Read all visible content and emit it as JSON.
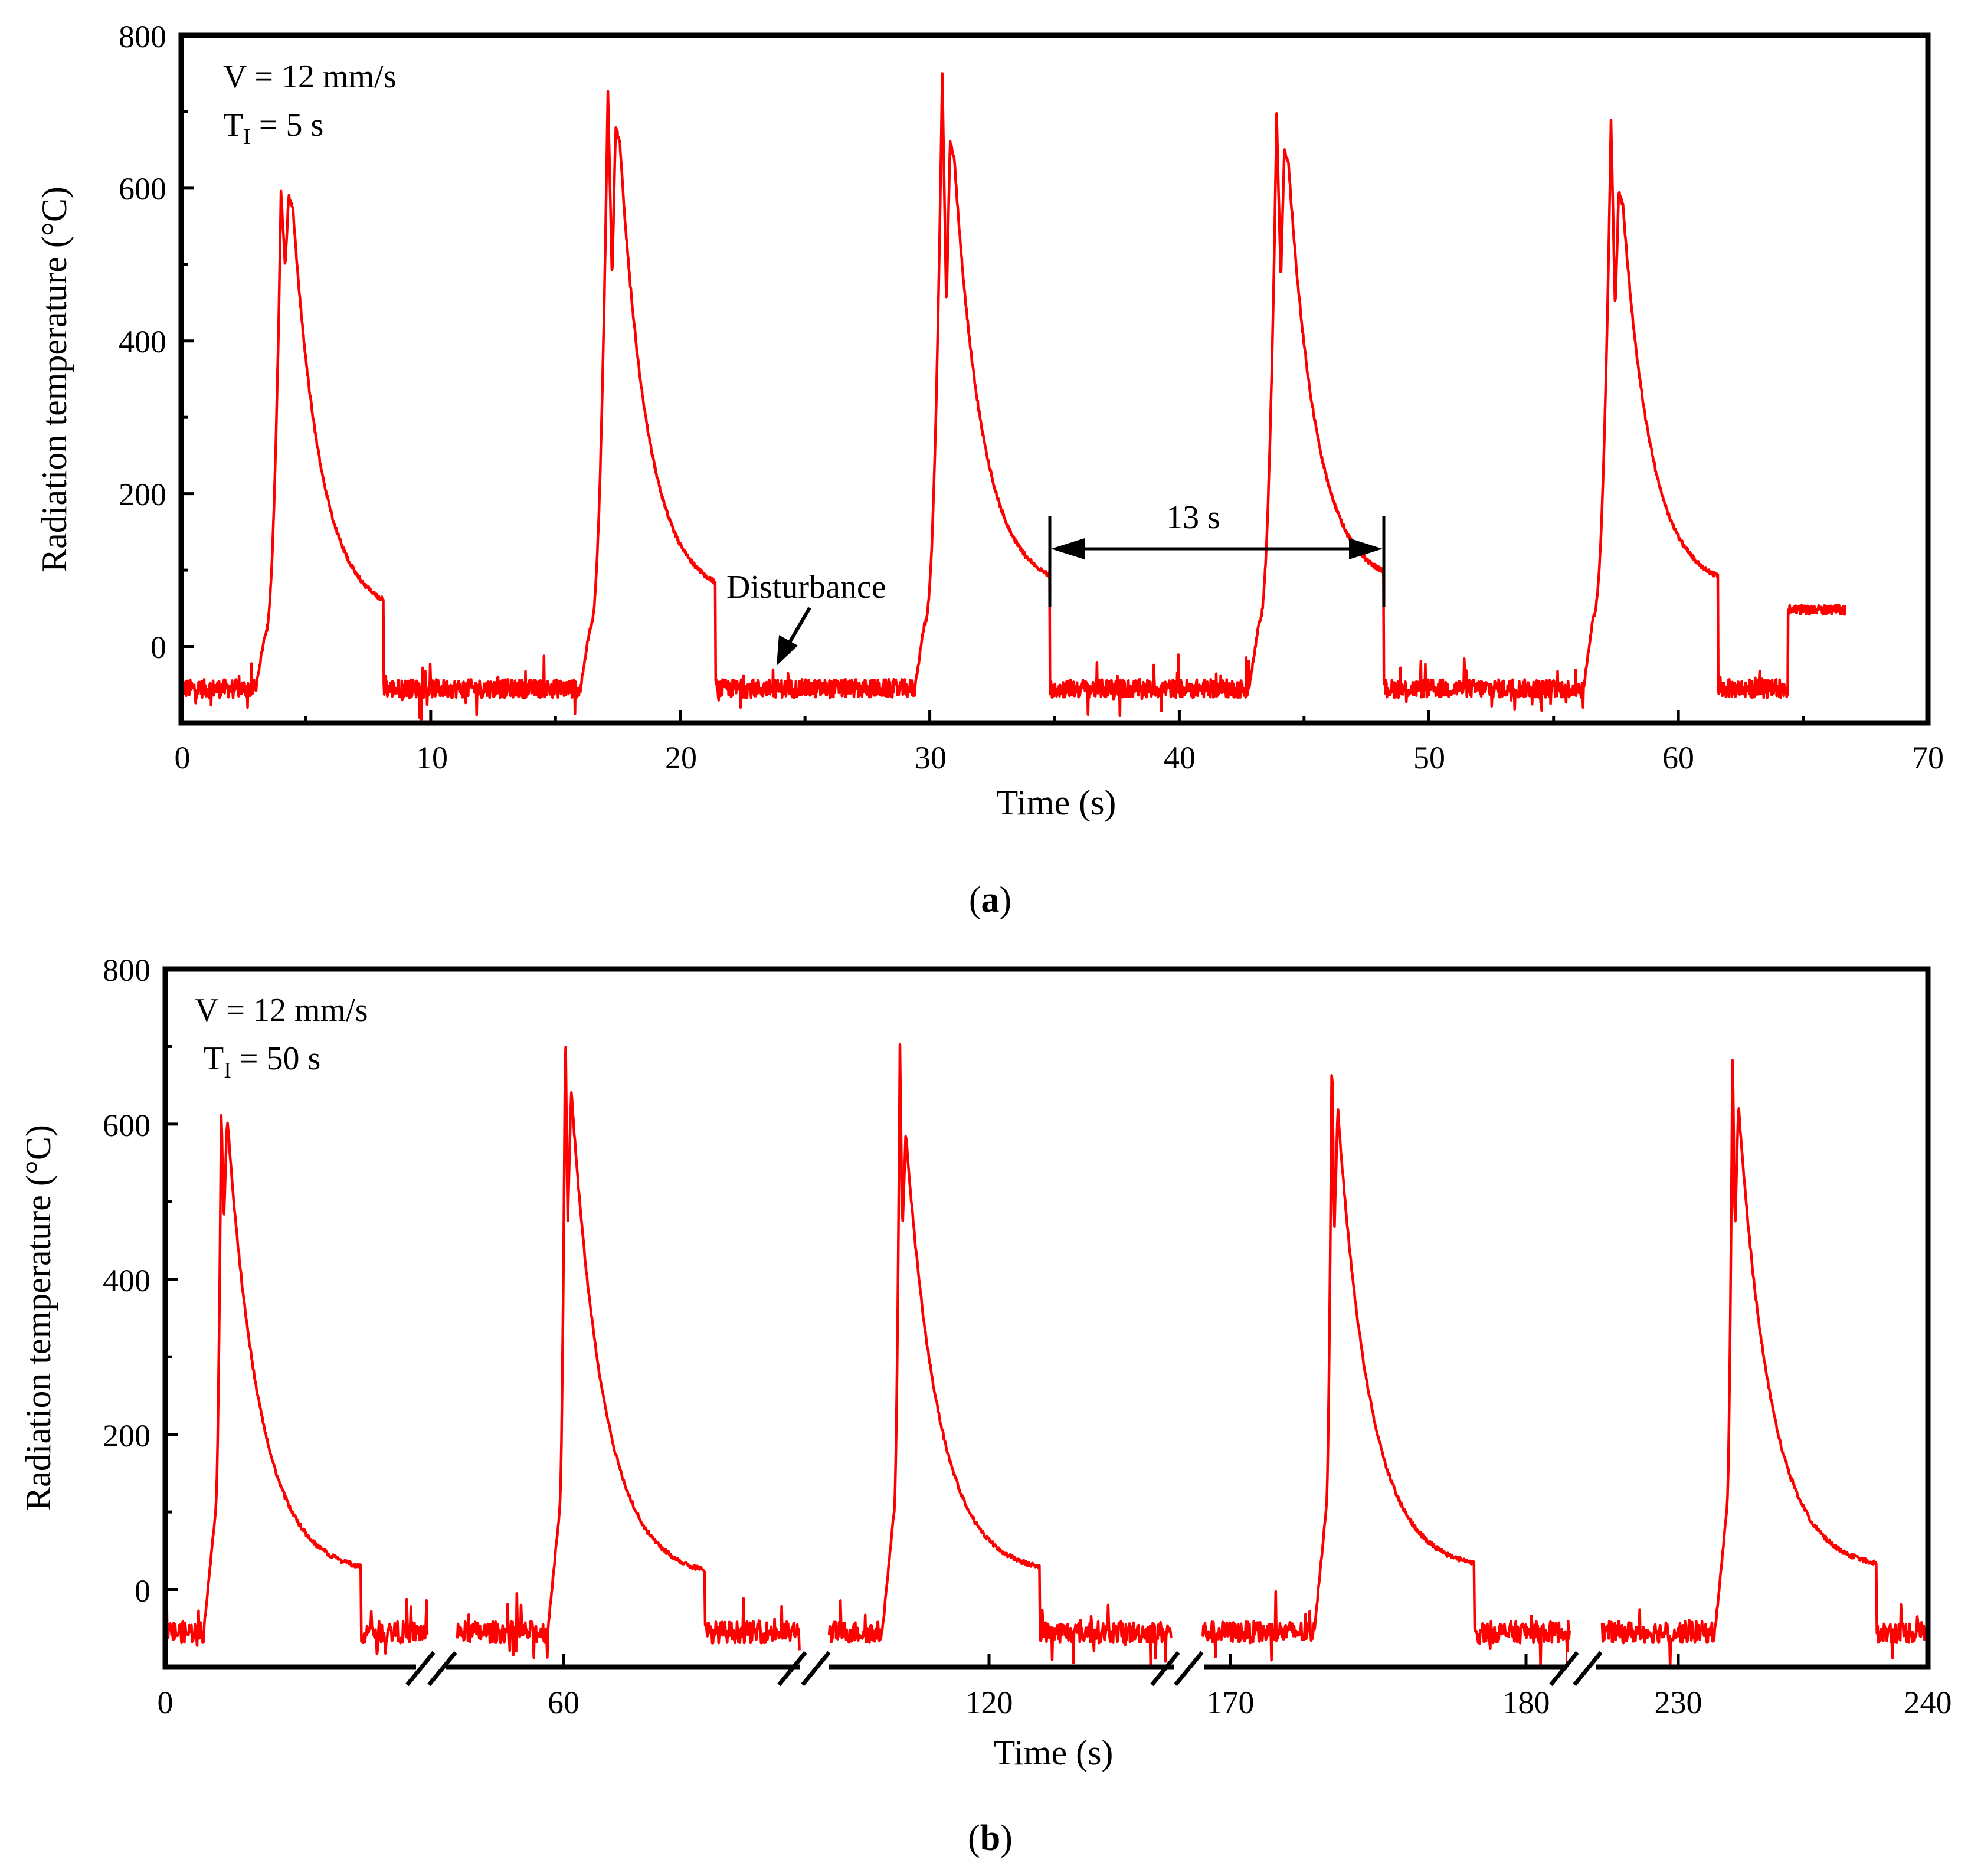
{
  "chart_data": [
    {
      "type": "line",
      "panel": "a",
      "caption_letter": "a",
      "xlabel": "Time (s)",
      "ylabel": "Radiation temperature (°C)",
      "xlim": [
        0,
        70
      ],
      "ylim": [
        -100,
        800
      ],
      "x_ticks": [
        0,
        10,
        20,
        30,
        40,
        50,
        60,
        70
      ],
      "y_ticks": [
        0,
        200,
        400,
        600,
        800
      ],
      "annotation_lines": [
        "V = 12 mm/s",
        "T",
        "I",
        " = 5 s"
      ],
      "interval_label": "13 s",
      "interval_range": [
        34.8,
        48.2
      ],
      "disturbance_label": "Disturbance",
      "disturbance_at": [
        24,
        -35
      ],
      "series": [
        {
          "name": "Radiation temperature",
          "color": "#ff0000",
          "baseline": -55,
          "end_time": 66.7,
          "end_value": 48,
          "step_after": {
            "time": 64.4,
            "value": 48
          },
          "peaks": [
            {
              "onset": 3.0,
              "shoulder": 16,
              "rise_end": 4.0,
              "peak": 595,
              "dip": 500,
              "peak2": 590,
              "decay_knee": 200,
              "end_plateau": 40,
              "drop": 8.1
            },
            {
              "onset": 16.0,
              "shoulder": 25,
              "rise_end": 17.1,
              "peak": 728,
              "dip": 480,
              "peak2": 680,
              "decay_knee": 230,
              "end_plateau": 65,
              "drop": 21.4
            },
            {
              "onset": 29.4,
              "shoulder": 30,
              "rise_end": 30.5,
              "peak": 752,
              "dip": 440,
              "peak2": 660,
              "decay_knee": 230,
              "end_plateau": 75,
              "drop": 34.8
            },
            {
              "onset": 42.8,
              "shoulder": 30,
              "rise_end": 43.9,
              "peak": 695,
              "dip": 480,
              "peak2": 650,
              "decay_knee": 220,
              "end_plateau": 80,
              "drop": 48.2
            },
            {
              "onset": 56.2,
              "shoulder": 40,
              "rise_end": 57.3,
              "peak": 690,
              "dip": 440,
              "peak2": 595,
              "decay_knee": 220,
              "end_plateau": 75,
              "drop": 61.6
            }
          ]
        }
      ]
    },
    {
      "type": "line",
      "panel": "b",
      "caption_letter": "b",
      "xlabel": "Time (s)",
      "ylabel": "Radiation temperature (°C)",
      "ylim": [
        -100,
        800
      ],
      "y_ticks": [
        0,
        200,
        400,
        600,
        800
      ],
      "x_tick_labels": [
        "0",
        "60",
        "120",
        "170",
        "180",
        "230",
        "240"
      ],
      "axis_break_count": 4,
      "annotation_lines": [
        "V  = 12 mm/s",
        "T",
        "I",
        " = 50 s"
      ],
      "series": [
        {
          "name": "Radiation temperature",
          "color": "#ff0000",
          "baseline": -55,
          "peaks": [
            {
              "peak": 628,
              "dip": 470,
              "peak2": 610,
              "end_plateau": 20
            },
            {
              "peak": 738,
              "dip": 470,
              "peak2": 645,
              "end_plateau": 15
            },
            {
              "peak": 705,
              "dip": 460,
              "peak2": 590,
              "end_plateau": 20
            },
            {
              "peak": 703,
              "dip": 460,
              "peak2": 620,
              "end_plateau": 25
            },
            {
              "peak": 703,
              "dip": 460,
              "peak2": 625,
              "end_plateau": 25
            }
          ]
        }
      ]
    }
  ]
}
